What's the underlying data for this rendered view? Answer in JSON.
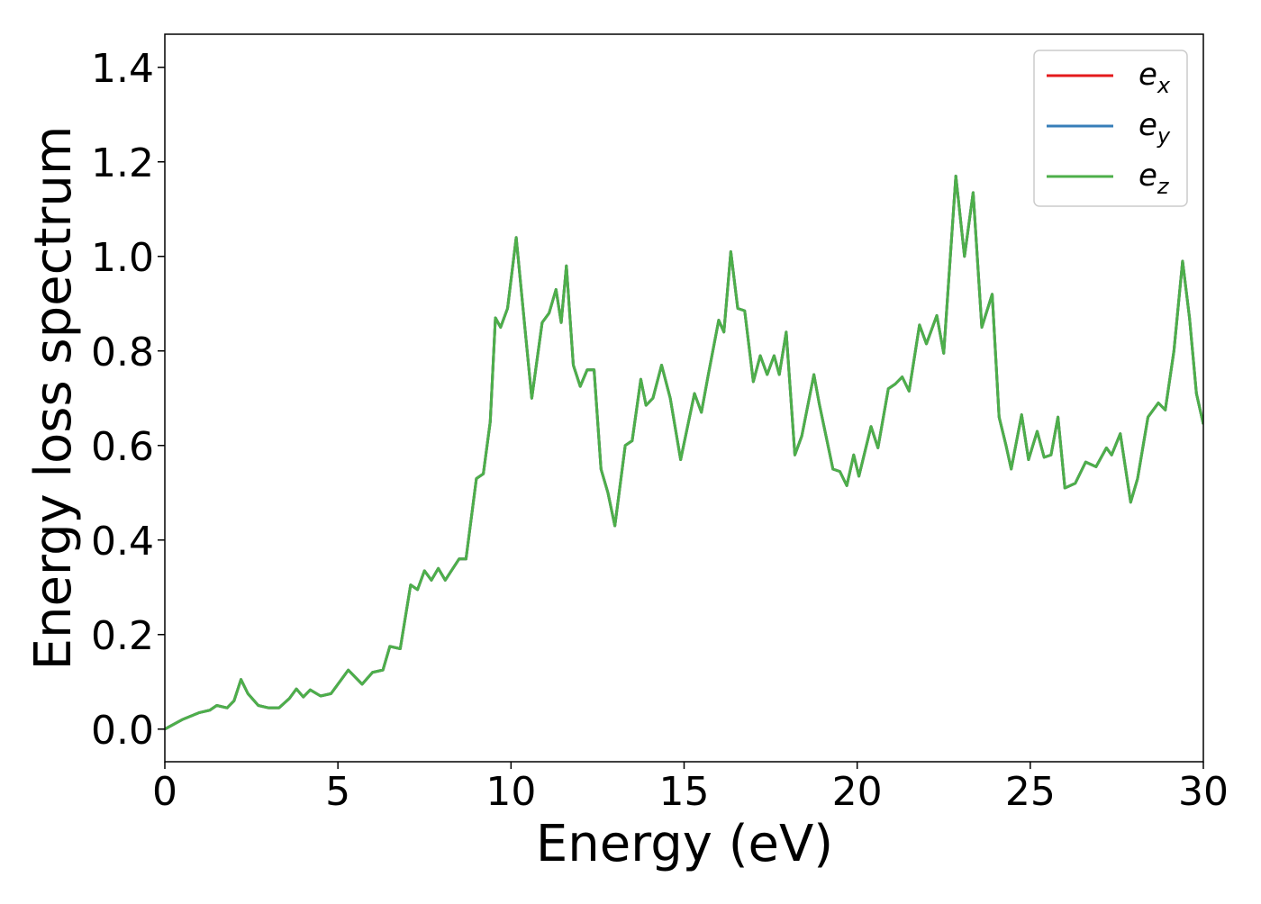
{
  "chart_data": {
    "type": "line",
    "xlabel": "Energy (eV)",
    "ylabel": "Energy loss spectrum",
    "xlim": [
      0,
      30
    ],
    "ylim": [
      -0.069,
      1.47
    ],
    "xticks": [
      0,
      5,
      10,
      15,
      20,
      25,
      30
    ],
    "yticks": [
      {
        "value": 0,
        "label": "0.0"
      },
      0.2,
      0.4,
      0.6,
      0.8,
      {
        "value": 1,
        "label": "1.0"
      },
      1.2,
      1.4
    ],
    "legend": "upper right",
    "x": [
      0,
      0.5,
      1.0,
      1.3,
      1.5,
      1.8,
      2.0,
      2.2,
      2.4,
      2.7,
      3.0,
      3.3,
      3.6,
      3.8,
      4.0,
      4.2,
      4.5,
      4.8,
      5.0,
      5.3,
      5.7,
      6.0,
      6.3,
      6.5,
      6.8,
      7.1,
      7.3,
      7.5,
      7.7,
      7.9,
      8.1,
      8.5,
      8.7,
      9.0,
      9.2,
      9.4,
      9.55,
      9.7,
      9.9,
      10.15,
      10.4,
      10.6,
      10.9,
      11.1,
      11.3,
      11.45,
      11.6,
      11.8,
      12.0,
      12.2,
      12.4,
      12.6,
      12.8,
      13.0,
      13.3,
      13.5,
      13.75,
      13.9,
      14.1,
      14.35,
      14.6,
      14.9,
      15.3,
      15.5,
      15.7,
      16.0,
      16.15,
      16.35,
      16.55,
      16.75,
      17.0,
      17.2,
      17.4,
      17.6,
      17.75,
      17.95,
      18.2,
      18.4,
      18.75,
      18.9,
      19.1,
      19.3,
      19.5,
      19.7,
      19.9,
      20.05,
      20.4,
      20.6,
      20.9,
      21.1,
      21.3,
      21.5,
      21.8,
      22.0,
      22.3,
      22.5,
      22.85,
      23.1,
      23.35,
      23.6,
      23.9,
      24.1,
      24.3,
      24.45,
      24.75,
      24.95,
      25.2,
      25.4,
      25.6,
      25.8,
      26.0,
      26.3,
      26.6,
      26.9,
      27.2,
      27.35,
      27.6,
      27.9,
      28.1,
      28.4,
      28.7,
      28.9,
      29.15,
      29.4,
      29.6,
      29.8,
      30.0
    ],
    "series": [
      {
        "name": "e_x",
        "color": "#e41a1c",
        "values": [
          0,
          0.02,
          0.035,
          0.04,
          0.05,
          0.045,
          0.06,
          0.105,
          0.075,
          0.05,
          0.045,
          0.045,
          0.065,
          0.085,
          0.068,
          0.083,
          0.07,
          0.075,
          0.095,
          0.125,
          0.095,
          0.12,
          0.125,
          0.175,
          0.17,
          0.305,
          0.295,
          0.335,
          0.315,
          0.34,
          0.315,
          0.36,
          0.36,
          0.53,
          0.54,
          0.65,
          0.87,
          0.85,
          0.89,
          1.04,
          0.85,
          0.7,
          0.86,
          0.88,
          0.93,
          0.86,
          0.98,
          0.77,
          0.725,
          0.76,
          0.76,
          0.55,
          0.5,
          0.43,
          0.6,
          0.61,
          0.74,
          0.685,
          0.7,
          0.77,
          0.7,
          0.57,
          0.71,
          0.67,
          0.75,
          0.865,
          0.84,
          1.01,
          0.89,
          0.885,
          0.735,
          0.79,
          0.75,
          0.79,
          0.75,
          0.84,
          0.58,
          0.62,
          0.75,
          0.69,
          0.62,
          0.55,
          0.545,
          0.515,
          0.58,
          0.535,
          0.64,
          0.595,
          0.72,
          0.73,
          0.745,
          0.715,
          0.855,
          0.815,
          0.875,
          0.795,
          1.17,
          1.0,
          1.135,
          0.85,
          0.92,
          0.66,
          0.6,
          0.55,
          0.665,
          0.57,
          0.63,
          0.575,
          0.58,
          0.66,
          0.51,
          0.52,
          0.565,
          0.555,
          0.595,
          0.58,
          0.625,
          0.48,
          0.53,
          0.66,
          0.69,
          0.675,
          0.8,
          0.99,
          0.87,
          0.71,
          0.645
        ]
      },
      {
        "name": "e_y",
        "color": "#377eb8",
        "values": [
          0,
          0.02,
          0.035,
          0.04,
          0.05,
          0.045,
          0.06,
          0.105,
          0.075,
          0.05,
          0.045,
          0.045,
          0.065,
          0.085,
          0.068,
          0.083,
          0.07,
          0.075,
          0.095,
          0.125,
          0.095,
          0.12,
          0.125,
          0.175,
          0.17,
          0.305,
          0.295,
          0.335,
          0.315,
          0.34,
          0.315,
          0.36,
          0.36,
          0.53,
          0.54,
          0.65,
          0.87,
          0.85,
          0.89,
          1.04,
          0.85,
          0.7,
          0.86,
          0.88,
          0.93,
          0.86,
          0.98,
          0.77,
          0.725,
          0.76,
          0.76,
          0.55,
          0.5,
          0.43,
          0.6,
          0.61,
          0.74,
          0.685,
          0.7,
          0.77,
          0.7,
          0.57,
          0.71,
          0.67,
          0.75,
          0.865,
          0.84,
          1.01,
          0.89,
          0.885,
          0.735,
          0.79,
          0.75,
          0.79,
          0.75,
          0.84,
          0.58,
          0.62,
          0.75,
          0.69,
          0.62,
          0.55,
          0.545,
          0.515,
          0.58,
          0.535,
          0.64,
          0.595,
          0.72,
          0.73,
          0.745,
          0.715,
          0.855,
          0.815,
          0.875,
          0.795,
          1.17,
          1.0,
          1.135,
          0.85,
          0.92,
          0.66,
          0.6,
          0.55,
          0.665,
          0.57,
          0.63,
          0.575,
          0.58,
          0.66,
          0.51,
          0.52,
          0.565,
          0.555,
          0.595,
          0.58,
          0.625,
          0.48,
          0.53,
          0.66,
          0.69,
          0.675,
          0.8,
          0.99,
          0.87,
          0.71,
          0.645
        ]
      },
      {
        "name": "e_z",
        "color": "#4daf4a",
        "values": [
          0,
          0.02,
          0.035,
          0.04,
          0.05,
          0.045,
          0.06,
          0.105,
          0.075,
          0.05,
          0.045,
          0.045,
          0.065,
          0.085,
          0.068,
          0.083,
          0.07,
          0.075,
          0.095,
          0.125,
          0.095,
          0.12,
          0.125,
          0.175,
          0.17,
          0.305,
          0.295,
          0.335,
          0.315,
          0.34,
          0.315,
          0.36,
          0.36,
          0.53,
          0.54,
          0.65,
          0.87,
          0.85,
          0.89,
          1.04,
          0.85,
          0.7,
          0.86,
          0.88,
          0.93,
          0.86,
          0.98,
          0.77,
          0.725,
          0.76,
          0.76,
          0.55,
          0.5,
          0.43,
          0.6,
          0.61,
          0.74,
          0.685,
          0.7,
          0.77,
          0.7,
          0.57,
          0.71,
          0.67,
          0.75,
          0.865,
          0.84,
          1.01,
          0.89,
          0.885,
          0.735,
          0.79,
          0.75,
          0.79,
          0.75,
          0.84,
          0.58,
          0.62,
          0.75,
          0.69,
          0.62,
          0.55,
          0.545,
          0.515,
          0.58,
          0.535,
          0.64,
          0.595,
          0.72,
          0.73,
          0.745,
          0.715,
          0.855,
          0.815,
          0.875,
          0.795,
          1.17,
          1.0,
          1.135,
          0.85,
          0.92,
          0.66,
          0.6,
          0.55,
          0.665,
          0.57,
          0.63,
          0.575,
          0.58,
          0.66,
          0.51,
          0.52,
          0.565,
          0.555,
          0.595,
          0.58,
          0.625,
          0.48,
          0.53,
          0.66,
          0.69,
          0.675,
          0.8,
          0.99,
          0.87,
          0.71,
          0.645
        ]
      }
    ]
  }
}
